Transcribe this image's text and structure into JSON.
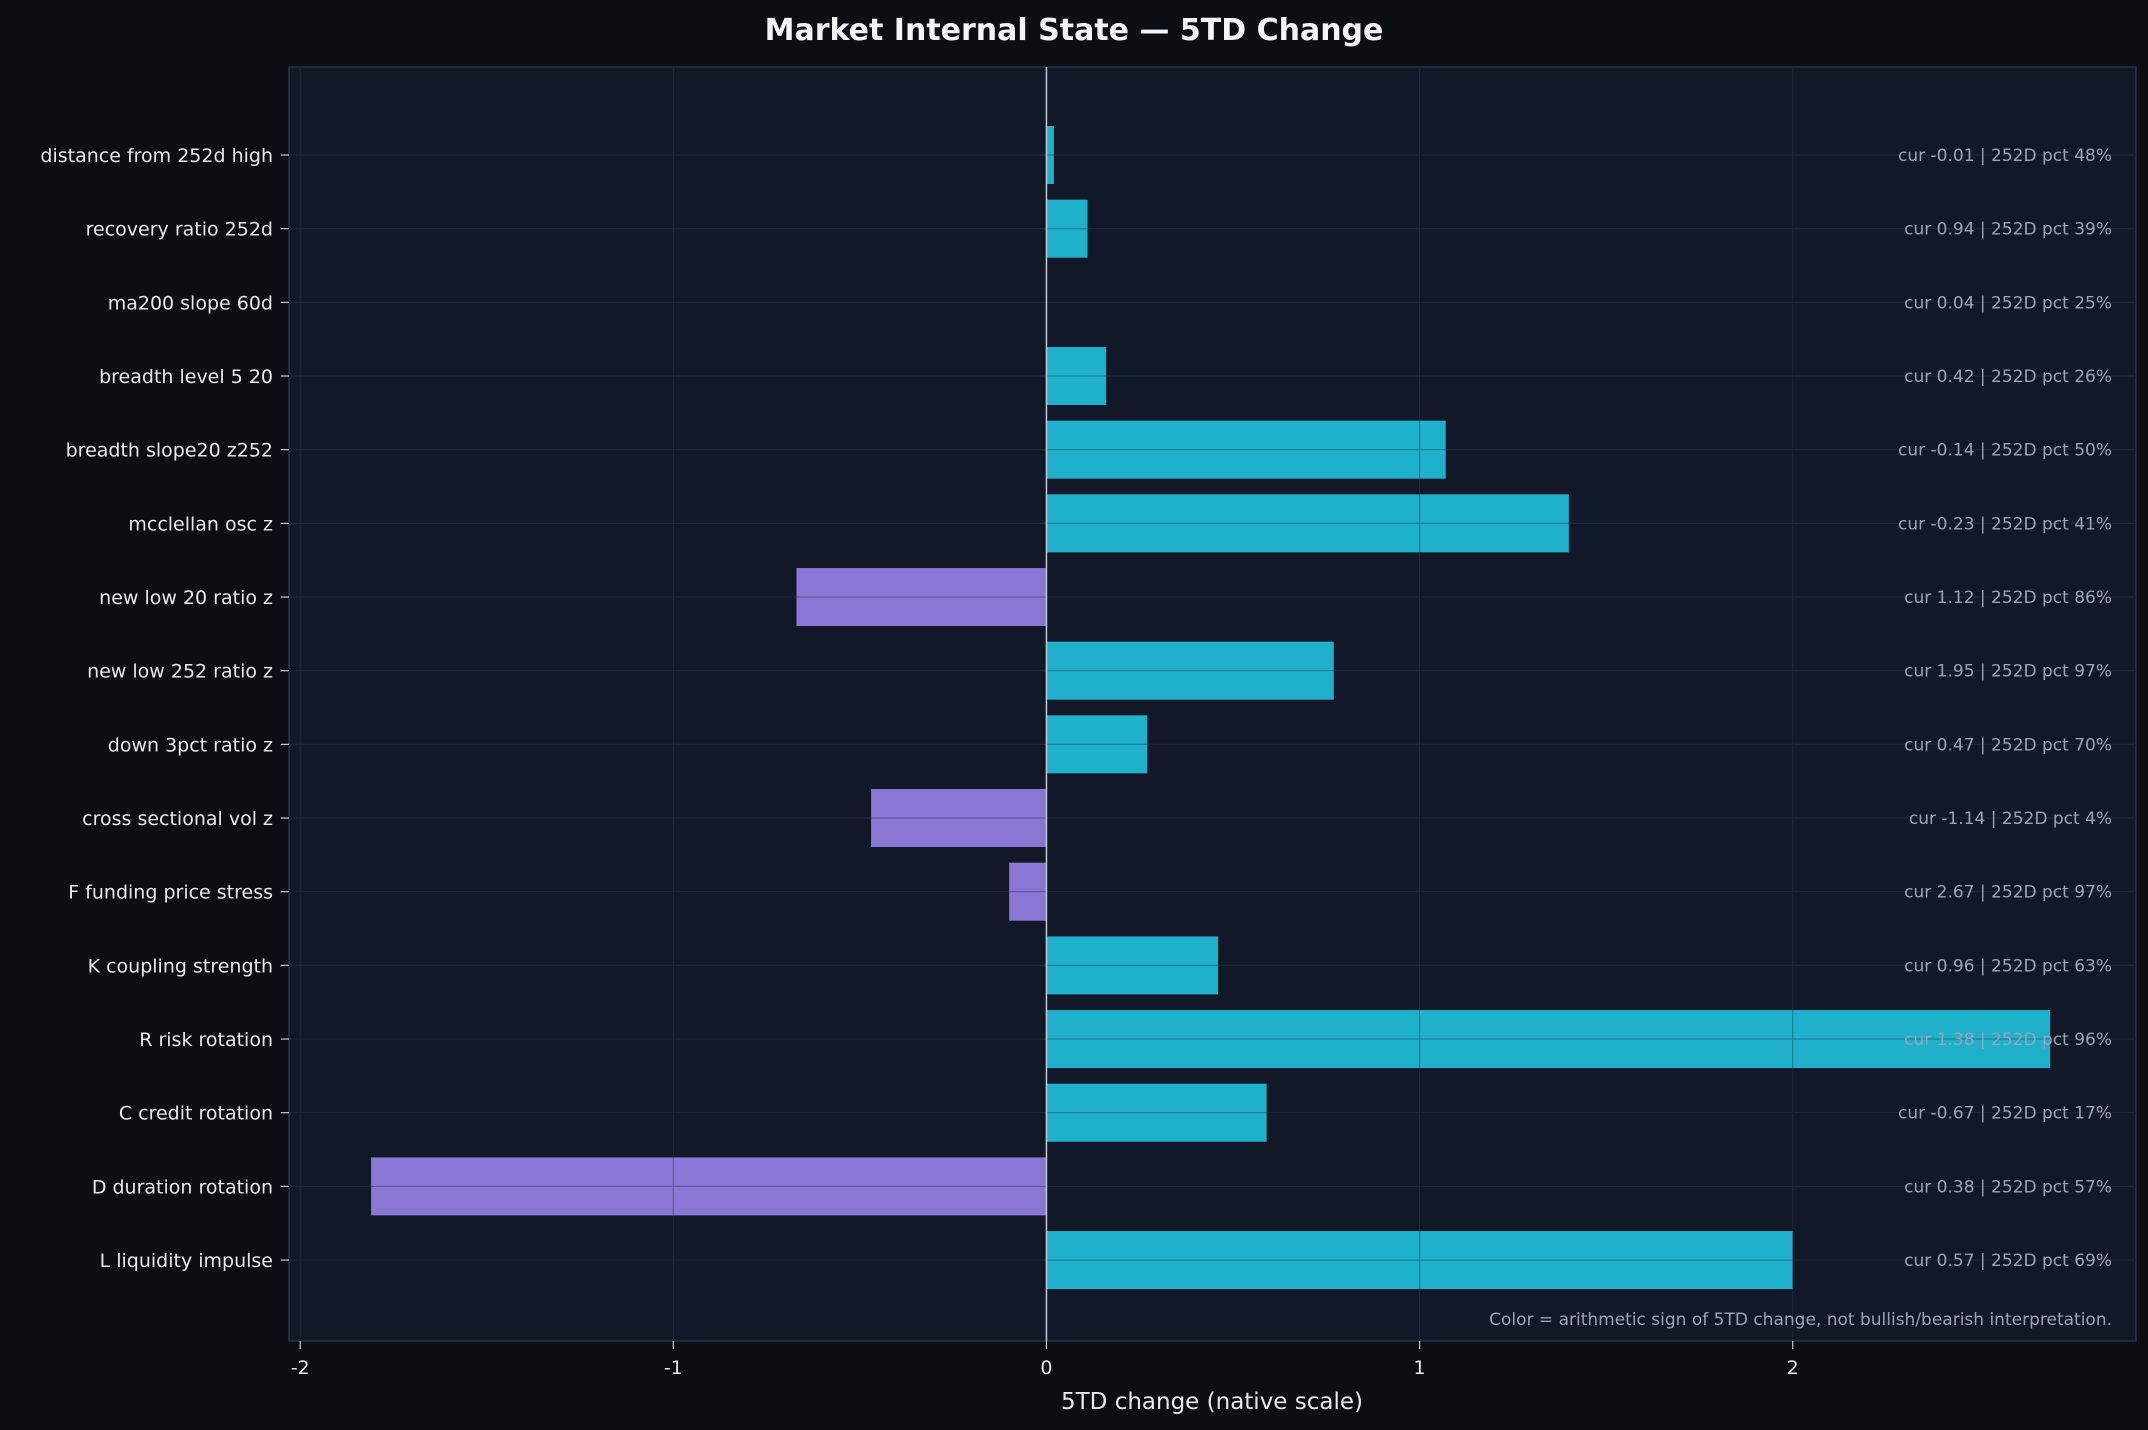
{
  "chart_data": {
    "type": "bar",
    "orientation": "horizontal",
    "title": "Market Internal State — 5TD Change",
    "xlabel": "5TD change (native scale)",
    "ylabel": "",
    "xlim": [
      -2.03,
      2.92
    ],
    "xticks": [
      -2,
      -1,
      0,
      1,
      2
    ],
    "xtick_labels": [
      "-2",
      "-1",
      "0",
      "1",
      "2"
    ],
    "grid": true,
    "categories": [
      "distance from 252d high",
      "recovery ratio 252d",
      "ma200 slope 60d",
      "breadth level 5 20",
      "breadth slope20 z252",
      "mcclellan osc z",
      "new low 20 ratio z",
      "new low 252 ratio z",
      "down 3pct ratio z",
      "cross sectional vol z",
      "F funding price stress",
      "K coupling strength",
      "R risk rotation",
      "C credit rotation",
      "D duration rotation",
      "L liquidity impulse"
    ],
    "values": [
      0.02,
      0.11,
      0.0,
      0.16,
      1.07,
      1.4,
      -0.67,
      0.77,
      0.27,
      -0.47,
      -0.1,
      0.46,
      2.69,
      0.59,
      -1.81,
      2.0
    ],
    "annotations": [
      "cur -0.01 | 252D pct 48%",
      "cur 0.94 | 252D pct 39%",
      "cur 0.04 | 252D pct 25%",
      "cur 0.42 | 252D pct 26%",
      "cur -0.14 | 252D pct 50%",
      "cur -0.23 | 252D pct 41%",
      "cur 1.12 | 252D pct 86%",
      "cur 1.95 | 252D pct 97%",
      "cur 0.47 | 252D pct 70%",
      "cur -1.14 | 252D pct 4%",
      "cur 2.67 | 252D pct 97%",
      "cur 0.96 | 252D pct 63%",
      "cur 1.38 | 252D pct 96%",
      "cur -0.67 | 252D pct 17%",
      "cur 0.38 | 252D pct 57%",
      "cur 0.57 | 252D pct 69%"
    ],
    "footnote": "Color = arithmetic sign of 5TD change, not bullish/bearish interpretation.",
    "colors": {
      "positive": "#1fb0cb",
      "negative": "#8a76d4",
      "figure_background": "#0b0f14",
      "plot_background": "#111827",
      "grid": "#1f2a3a",
      "zero_line": "#c4cad4"
    }
  }
}
